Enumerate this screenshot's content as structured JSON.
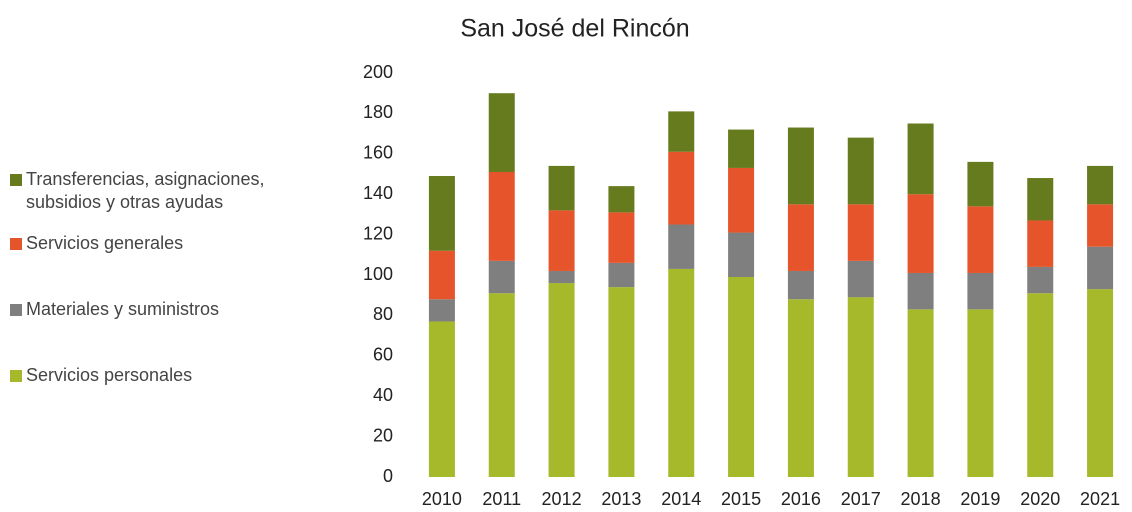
{
  "chart_data": {
    "type": "stacked_bar",
    "title": "San José del Rincón",
    "categories": [
      "2010",
      "2011",
      "2012",
      "2013",
      "2014",
      "2015",
      "2016",
      "2017",
      "2018",
      "2019",
      "2020",
      "2021"
    ],
    "series": [
      {
        "name": "Servicios personales",
        "color": "#a5b92a",
        "values": [
          77,
          91,
          96,
          94,
          103,
          99,
          88,
          89,
          83,
          83,
          91,
          93
        ]
      },
      {
        "name": "Materiales y suministros",
        "color": "#7f7f7f",
        "values": [
          11,
          16,
          6,
          12,
          22,
          22,
          14,
          18,
          18,
          18,
          13,
          21
        ]
      },
      {
        "name": "Servicios generales",
        "color": "#e5542a",
        "values": [
          24,
          44,
          30,
          25,
          36,
          32,
          33,
          28,
          39,
          33,
          23,
          21
        ]
      },
      {
        "name": "Transferencias, asignaciones, subsidios y otras ayudas",
        "color": "#667a1e",
        "values": [
          37,
          39,
          22,
          13,
          20,
          19,
          38,
          33,
          35,
          22,
          21,
          19
        ]
      }
    ],
    "ylim": [
      0,
      200
    ],
    "yticks": [
      0,
      20,
      40,
      60,
      80,
      100,
      120,
      140,
      160,
      180,
      200
    ],
    "grid": false,
    "legend": "left"
  }
}
